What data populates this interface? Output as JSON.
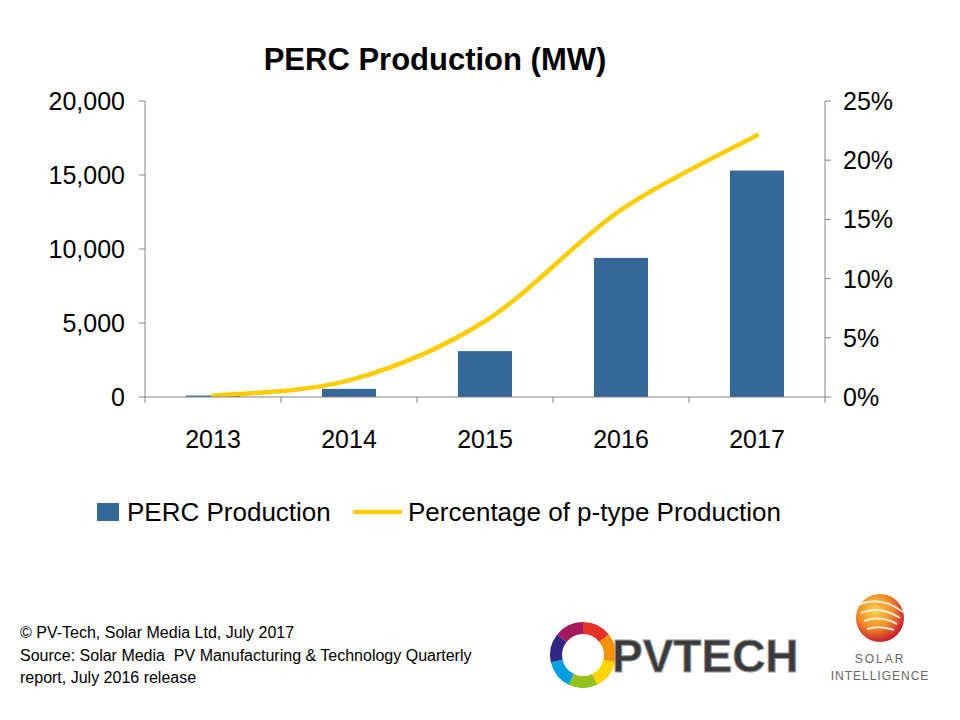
{
  "chart_data": {
    "type": "bar",
    "title": "PERC Production (MW)",
    "categories": [
      "2013",
      "2014",
      "2015",
      "2016",
      "2017"
    ],
    "series": [
      {
        "name": "PERC Production",
        "type": "bar",
        "color": "#356799",
        "values": [
          100,
          550,
          3100,
          9400,
          15300
        ]
      },
      {
        "name": "Percentage of p-type Production",
        "type": "line",
        "axis": "y2",
        "color": "#FFCC00",
        "values": [
          0.1,
          1.4,
          6.4,
          15.8,
          22.1
        ]
      }
    ],
    "ylim": [
      0,
      20000
    ],
    "yticks": [
      0,
      {
        "value": 5000,
        "label": "5,000"
      },
      {
        "value": 10000,
        "label": "10,000"
      },
      {
        "value": 15000,
        "label": "15,000"
      },
      {
        "value": 20000,
        "label": "20,000"
      }
    ],
    "y2lim": [
      0,
      25
    ],
    "y2ticks": [
      {
        "value": 0,
        "label": "0%"
      },
      {
        "value": 5,
        "label": "5%"
      },
      {
        "value": 10,
        "label": "10%"
      },
      {
        "value": 15,
        "label": "15%"
      },
      {
        "value": 20,
        "label": "20%"
      },
      {
        "value": 25,
        "label": "25%"
      }
    ],
    "grid": false,
    "legend": "bottom",
    "footer": [
      "© PV-Tech, Solar Media Ltd, July 2017",
      "Source: Solar Media  PV Manufacturing & Technology Quarterly",
      "report, July 2016 release"
    ],
    "logos": [
      "PVTECH",
      "SOLAR",
      "INTELLIGENCE"
    ]
  }
}
